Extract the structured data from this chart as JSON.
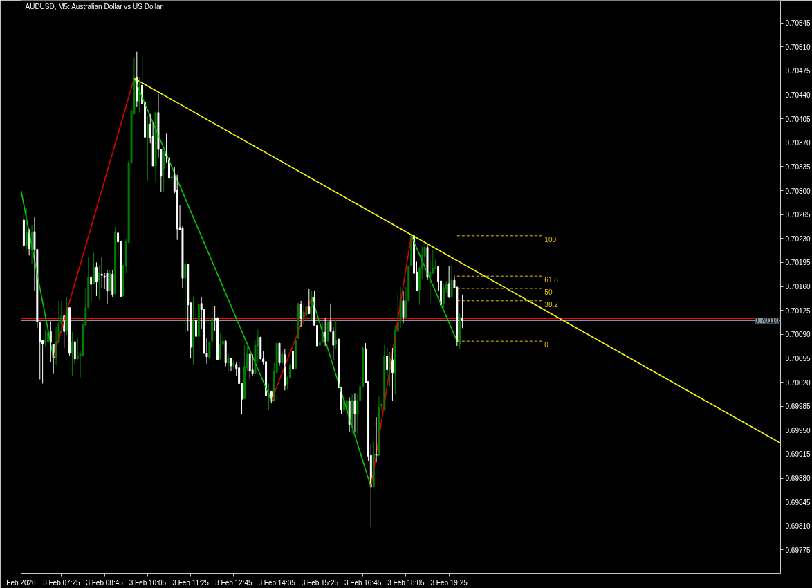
{
  "chart_data": {
    "type": "candlestick",
    "title": "AUDUSD, M5: Australian Dollar vs US Dollar",
    "x": [
      "2026-02-03T06:15",
      "2026-02-03T06:20",
      "2026-02-03T06:25",
      "2026-02-03T06:30",
      "2026-02-03T06:35",
      "2026-02-03T06:40",
      "2026-02-03T06:45",
      "2026-02-03T06:50",
      "2026-02-03T06:55",
      "2026-02-03T07:00",
      "2026-02-03T07:05",
      "2026-02-03T07:10",
      "2026-02-03T07:15",
      "2026-02-03T07:20",
      "2026-02-03T07:25",
      "2026-02-03T07:30",
      "2026-02-03T07:35",
      "2026-02-03T07:40",
      "2026-02-03T07:45",
      "2026-02-03T07:50",
      "2026-02-03T07:55",
      "2026-02-03T08:00",
      "2026-02-03T08:05",
      "2026-02-03T08:10",
      "2026-02-03T08:15",
      "2026-02-03T08:20",
      "2026-02-03T08:25",
      "2026-02-03T08:30",
      "2026-02-03T08:35",
      "2026-02-03T08:40",
      "2026-02-03T08:45",
      "2026-02-03T08:50",
      "2026-02-03T08:55",
      "2026-02-03T09:00",
      "2026-02-03T09:05",
      "2026-02-03T09:10",
      "2026-02-03T09:15",
      "2026-02-03T09:20",
      "2026-02-03T09:25",
      "2026-02-03T09:30",
      "2026-02-03T09:35",
      "2026-02-03T09:40",
      "2026-02-03T09:45",
      "2026-02-03T09:50",
      "2026-02-03T09:55",
      "2026-02-03T10:00",
      "2026-02-03T10:05",
      "2026-02-03T10:10",
      "2026-02-03T10:15",
      "2026-02-03T10:20",
      "2026-02-03T10:25",
      "2026-02-03T10:30",
      "2026-02-03T10:35",
      "2026-02-03T10:40",
      "2026-02-03T10:45",
      "2026-02-03T10:50",
      "2026-02-03T10:55",
      "2026-02-03T11:00",
      "2026-02-03T11:05",
      "2026-02-03T11:10",
      "2026-02-03T11:15",
      "2026-02-03T11:20",
      "2026-02-03T11:25",
      "2026-02-03T11:30",
      "2026-02-03T11:35",
      "2026-02-03T11:40",
      "2026-02-03T11:45",
      "2026-02-03T11:50",
      "2026-02-03T11:55",
      "2026-02-03T12:00",
      "2026-02-03T12:05",
      "2026-02-03T12:10",
      "2026-02-03T12:15",
      "2026-02-03T12:20",
      "2026-02-03T12:25",
      "2026-02-03T12:30",
      "2026-02-03T12:35",
      "2026-02-03T12:40",
      "2026-02-03T12:45",
      "2026-02-03T12:50",
      "2026-02-03T12:55",
      "2026-02-03T13:00",
      "2026-02-03T13:05",
      "2026-02-03T13:10",
      "2026-02-03T13:15",
      "2026-02-03T13:20",
      "2026-02-03T13:25",
      "2026-02-03T13:30",
      "2026-02-03T13:35",
      "2026-02-03T13:40",
      "2026-02-03T13:45",
      "2026-02-03T13:50",
      "2026-02-03T13:55",
      "2026-02-03T14:00",
      "2026-02-03T14:05",
      "2026-02-03T14:10",
      "2026-02-03T14:15",
      "2026-02-03T14:20",
      "2026-02-03T14:25",
      "2026-02-03T14:30",
      "2026-02-03T14:35",
      "2026-02-03T14:40",
      "2026-02-03T14:45",
      "2026-02-03T14:50",
      "2026-02-03T14:55",
      "2026-02-03T15:00",
      "2026-02-03T15:05",
      "2026-02-03T15:10",
      "2026-02-03T15:15",
      "2026-02-03T15:20",
      "2026-02-03T15:25",
      "2026-02-03T15:30",
      "2026-02-03T15:35",
      "2026-02-03T15:40",
      "2026-02-03T15:45",
      "2026-02-03T15:50",
      "2026-02-03T15:55",
      "2026-02-03T16:00",
      "2026-02-03T16:05",
      "2026-02-03T16:10",
      "2026-02-03T16:15",
      "2026-02-03T16:20",
      "2026-02-03T16:25",
      "2026-02-03T16:30",
      "2026-02-03T16:35",
      "2026-02-03T16:40",
      "2026-02-03T16:45",
      "2026-02-03T16:50",
      "2026-02-03T16:55",
      "2026-02-03T17:00",
      "2026-02-03T17:05",
      "2026-02-03T17:10",
      "2026-02-03T17:15",
      "2026-02-03T17:20",
      "2026-02-03T17:25",
      "2026-02-03T17:30",
      "2026-02-03T17:35",
      "2026-02-03T17:40",
      "2026-02-03T17:45",
      "2026-02-03T17:50",
      "2026-02-03T17:55",
      "2026-02-03T18:00",
      "2026-02-03T18:05",
      "2026-02-03T18:10",
      "2026-02-03T18:15",
      "2026-02-03T18:20",
      "2026-02-03T18:25",
      "2026-02-03T18:30",
      "2026-02-03T18:35",
      "2026-02-03T18:40",
      "2026-02-03T18:45",
      "2026-02-03T18:50",
      "2026-02-03T18:55",
      "2026-02-03T19:00",
      "2026-02-03T19:05",
      "2026-02-03T19:10",
      "2026-02-03T19:15",
      "2026-02-03T19:20",
      "2026-02-03T19:25",
      "2026-02-03T19:30",
      "2026-02-03T19:35",
      "2026-02-03T19:40",
      "2026-02-03T19:45",
      "2026-02-03T19:50"
    ],
    "ohlc": [
      [
        0.70257,
        0.70266,
        0.70214,
        0.7022
      ],
      [
        0.7022,
        0.70274,
        0.70214,
        0.70239
      ],
      [
        0.70242,
        0.70244,
        0.70205,
        0.70215
      ],
      [
        0.70214,
        0.7025,
        0.70193,
        0.70238
      ],
      [
        0.7024,
        0.70261,
        0.70154,
        0.70214
      ],
      [
        0.70214,
        0.70214,
        0.70099,
        0.70108
      ],
      [
        0.70108,
        0.70108,
        0.70024,
        0.70079
      ],
      [
        0.70081,
        0.70082,
        0.70018,
        0.70076
      ],
      [
        0.70078,
        0.70096,
        0.70073,
        0.70081
      ],
      [
        0.70079,
        0.70154,
        0.70049,
        0.70093
      ],
      [
        0.70094,
        0.70109,
        0.70049,
        0.70078
      ],
      [
        0.70075,
        0.70075,
        0.70033,
        0.70056
      ],
      [
        0.70056,
        0.70101,
        0.70046,
        0.70079
      ],
      [
        0.70078,
        0.70139,
        0.70078,
        0.70106
      ],
      [
        0.70106,
        0.70139,
        0.70091,
        0.70116
      ],
      [
        0.70117,
        0.70117,
        0.7007,
        0.70094
      ],
      [
        0.70095,
        0.70145,
        0.70089,
        0.70129
      ],
      [
        0.70129,
        0.70129,
        0.70058,
        0.70062
      ],
      [
        0.70063,
        0.70093,
        0.70029,
        0.70078
      ],
      [
        0.70079,
        0.7008,
        0.70047,
        0.70054
      ],
      [
        0.70054,
        0.70085,
        0.70054,
        0.70059
      ],
      [
        0.70059,
        0.70066,
        0.70027,
        0.70061
      ],
      [
        0.70059,
        0.70106,
        0.70058,
        0.70104
      ],
      [
        0.70103,
        0.70158,
        0.70103,
        0.70129
      ],
      [
        0.70129,
        0.70203,
        0.70129,
        0.70174
      ],
      [
        0.70173,
        0.70176,
        0.70138,
        0.70163
      ],
      [
        0.70164,
        0.70209,
        0.70163,
        0.70188
      ],
      [
        0.70188,
        0.70195,
        0.70146,
        0.70167
      ],
      [
        0.70169,
        0.70191,
        0.70141,
        0.70179
      ],
      [
        0.70178,
        0.70203,
        0.70158,
        0.70176
      ],
      [
        0.70175,
        0.7018,
        0.70156,
        0.70173
      ],
      [
        0.70179,
        0.70184,
        0.70134,
        0.70153
      ],
      [
        0.70154,
        0.70184,
        0.70154,
        0.70179
      ],
      [
        0.70178,
        0.70184,
        0.70144,
        0.70148
      ],
      [
        0.70149,
        0.70247,
        0.70149,
        0.70239
      ],
      [
        0.70238,
        0.7024,
        0.70195,
        0.70225
      ],
      [
        0.70226,
        0.70226,
        0.70145,
        0.70145
      ],
      [
        0.70146,
        0.70191,
        0.70146,
        0.70191
      ],
      [
        0.7019,
        0.7023,
        0.70179,
        0.70225
      ],
      [
        0.70224,
        0.70344,
        0.70224,
        0.70341
      ],
      [
        0.70341,
        0.7042,
        0.70339,
        0.70416
      ],
      [
        0.70412,
        0.70494,
        0.70412,
        0.70464
      ],
      [
        0.70465,
        0.70503,
        0.70422,
        0.70431
      ],
      [
        0.70429,
        0.70466,
        0.70414,
        0.70451
      ],
      [
        0.70454,
        0.70498,
        0.70426,
        0.70427
      ],
      [
        0.70429,
        0.70434,
        0.70345,
        0.70378
      ],
      [
        0.70378,
        0.70409,
        0.70315,
        0.70397
      ],
      [
        0.70397,
        0.70412,
        0.70369,
        0.70377
      ],
      [
        0.70379,
        0.70399,
        0.70336,
        0.70336
      ],
      [
        0.70336,
        0.70416,
        0.70313,
        0.70414
      ],
      [
        0.70414,
        0.70441,
        0.70348,
        0.7036
      ],
      [
        0.7036,
        0.7036,
        0.70298,
        0.70321
      ],
      [
        0.70331,
        0.70358,
        0.70298,
        0.70357
      ],
      [
        0.70355,
        0.70384,
        0.70341,
        0.70351
      ],
      [
        0.70348,
        0.70358,
        0.70307,
        0.70318
      ],
      [
        0.70318,
        0.70323,
        0.70291,
        0.7032
      ],
      [
        0.70323,
        0.70334,
        0.70296,
        0.70299
      ],
      [
        0.703,
        0.70323,
        0.70228,
        0.70244
      ],
      [
        0.70246,
        0.70279,
        0.70243,
        0.70243
      ],
      [
        0.70245,
        0.70248,
        0.70158,
        0.70172
      ],
      [
        0.70172,
        0.70197,
        0.70093,
        0.70193
      ],
      [
        0.70192,
        0.70192,
        0.70095,
        0.70133
      ],
      [
        0.70136,
        0.70136,
        0.70055,
        0.70071
      ],
      [
        0.70071,
        0.70145,
        0.70046,
        0.70109
      ],
      [
        0.7011,
        0.70127,
        0.70087,
        0.70087
      ],
      [
        0.70087,
        0.70139,
        0.7008,
        0.70134
      ],
      [
        0.70135,
        0.70145,
        0.70098,
        0.70126
      ],
      [
        0.70126,
        0.70126,
        0.70062,
        0.70062
      ],
      [
        0.70062,
        0.70085,
        0.70047,
        0.70057
      ],
      [
        0.70055,
        0.70079,
        0.70055,
        0.70079
      ],
      [
        0.7008,
        0.70137,
        0.70068,
        0.70114
      ],
      [
        0.70114,
        0.70131,
        0.70095,
        0.70112
      ],
      [
        0.70114,
        0.70115,
        0.70053,
        0.70053
      ],
      [
        0.70054,
        0.70091,
        0.70053,
        0.70075
      ],
      [
        0.70075,
        0.701,
        0.70075,
        0.7008
      ],
      [
        0.7008,
        0.70082,
        0.70043,
        0.70048
      ],
      [
        0.70048,
        0.70063,
        0.70036,
        0.70055
      ],
      [
        0.70055,
        0.70055,
        0.70036,
        0.70044
      ],
      [
        0.70044,
        0.70053,
        0.70038,
        0.70048
      ],
      [
        0.70046,
        0.7005,
        0.70029,
        0.7004
      ],
      [
        0.70041,
        0.70049,
        0.70017,
        0.70018
      ],
      [
        0.70018,
        0.70018,
        0.69974,
        0.69995
      ],
      [
        0.69996,
        0.70074,
        0.69996,
        0.70043
      ],
      [
        0.70041,
        0.70073,
        0.70036,
        0.70061
      ],
      [
        0.70061,
        0.70061,
        0.70025,
        0.70036
      ],
      [
        0.70038,
        0.70061,
        0.70029,
        0.70033
      ],
      [
        0.70033,
        0.70082,
        0.70033,
        0.70074
      ],
      [
        0.70073,
        0.70097,
        0.70049,
        0.70085
      ],
      [
        0.70086,
        0.70086,
        0.70054,
        0.70054
      ],
      [
        0.70054,
        0.70066,
        0.70046,
        0.70049
      ],
      [
        0.7005,
        0.7005,
        0.7,
        0.7
      ],
      [
        0.7,
        0.70018,
        0.6998,
        0.70004
      ],
      [
        0.70007,
        0.70007,
        0.69989,
        0.69993
      ],
      [
        0.69992,
        0.70048,
        0.69992,
        0.70036
      ],
      [
        0.70034,
        0.70077,
        0.70034,
        0.70077
      ],
      [
        0.70077,
        0.70077,
        0.70044,
        0.70048
      ],
      [
        0.70048,
        0.70066,
        0.70048,
        0.70061
      ],
      [
        0.7006,
        0.70069,
        0.70008,
        0.70015
      ],
      [
        0.70017,
        0.70029,
        0.70009,
        0.70027
      ],
      [
        0.70026,
        0.70056,
        0.70026,
        0.70046
      ],
      [
        0.70065,
        0.70068,
        0.70039,
        0.70039
      ],
      [
        0.70039,
        0.70082,
        0.70039,
        0.70082
      ],
      [
        0.70084,
        0.70135,
        0.70084,
        0.70135
      ],
      [
        0.70134,
        0.70139,
        0.70101,
        0.70113
      ],
      [
        0.70113,
        0.70133,
        0.70104,
        0.70123
      ],
      [
        0.70119,
        0.70131,
        0.70109,
        0.7013
      ],
      [
        0.7013,
        0.70156,
        0.7012,
        0.7012
      ],
      [
        0.7013,
        0.70154,
        0.7011,
        0.70144
      ],
      [
        0.70144,
        0.70154,
        0.70103,
        0.70103
      ],
      [
        0.70103,
        0.70103,
        0.70058,
        0.70073
      ],
      [
        0.70074,
        0.70093,
        0.70074,
        0.70078
      ],
      [
        0.70078,
        0.70107,
        0.70078,
        0.70093
      ],
      [
        0.70093,
        0.70114,
        0.70073,
        0.7008
      ],
      [
        0.7008,
        0.70112,
        0.7008,
        0.70108
      ],
      [
        0.70109,
        0.70135,
        0.70094,
        0.70094
      ],
      [
        0.70094,
        0.70101,
        0.70053,
        0.70074
      ],
      [
        0.70076,
        0.70112,
        0.70069,
        0.70081
      ],
      [
        0.70083,
        0.70083,
        0.70012,
        0.70012
      ],
      [
        0.70013,
        0.70013,
        0.69973,
        0.6998
      ],
      [
        0.69979,
        0.69999,
        0.6997,
        0.69994
      ],
      [
        0.69979,
        0.69998,
        0.69966,
        0.69993
      ],
      [
        0.69993,
        0.69998,
        0.69947,
        0.69958
      ],
      [
        0.69955,
        0.70003,
        0.69945,
        0.69994
      ],
      [
        0.69993,
        0.70004,
        0.69948,
        0.69974
      ],
      [
        0.69973,
        0.70003,
        0.69945,
        0.69993
      ],
      [
        0.69993,
        0.70028,
        0.69993,
        0.70014
      ],
      [
        0.70013,
        0.70071,
        0.70013,
        0.7007
      ],
      [
        0.70069,
        0.70077,
        0.70019,
        0.70019
      ],
      [
        0.70021,
        0.70021,
        0.69905,
        0.69912
      ],
      [
        0.69913,
        0.69929,
        0.69808,
        0.69867
      ],
      [
        0.69867,
        0.69933,
        0.69867,
        0.69914
      ],
      [
        0.69915,
        0.69969,
        0.69903,
        0.69913
      ],
      [
        0.69913,
        0.69999,
        0.69913,
        0.69984
      ],
      [
        0.69985,
        0.69989,
        0.69979,
        0.69988
      ],
      [
        0.69979,
        0.70074,
        0.69979,
        0.70059
      ],
      [
        0.70058,
        0.70071,
        0.70028,
        0.70038
      ],
      [
        0.70038,
        0.70064,
        0.70014,
        0.70055
      ],
      [
        0.70053,
        0.7007,
        0.69993,
        0.70034
      ],
      [
        0.70033,
        0.70103,
        0.70003,
        0.70096
      ],
      [
        0.70094,
        0.70151,
        0.70094,
        0.70107
      ],
      [
        0.70109,
        0.70159,
        0.70099,
        0.7014
      ],
      [
        0.70139,
        0.70154,
        0.70106,
        0.70115
      ],
      [
        0.70115,
        0.70159,
        0.70115,
        0.70139
      ],
      [
        0.70139,
        0.7019,
        0.70139,
        0.7019
      ],
      [
        0.7019,
        0.70234,
        0.7019,
        0.70234
      ],
      [
        0.70234,
        0.70244,
        0.70169,
        0.70179
      ],
      [
        0.70181,
        0.70196,
        0.70153,
        0.70154
      ],
      [
        0.70155,
        0.70189,
        0.70133,
        0.70186
      ],
      [
        0.70186,
        0.70218,
        0.7017,
        0.70205
      ],
      [
        0.70204,
        0.70224,
        0.70193,
        0.70217
      ],
      [
        0.70217,
        0.70221,
        0.70169,
        0.70173
      ],
      [
        0.70173,
        0.70199,
        0.70134,
        0.70181
      ],
      [
        0.70179,
        0.70214,
        0.70179,
        0.70187
      ],
      [
        0.70186,
        0.70199,
        0.70186,
        0.70188
      ],
      [
        0.70189,
        0.70189,
        0.70154,
        0.70167
      ],
      [
        0.70168,
        0.70174,
        0.70084,
        0.70133
      ],
      [
        0.70134,
        0.70163,
        0.70128,
        0.70158
      ],
      [
        0.70156,
        0.70168,
        0.7015,
        0.70163
      ],
      [
        0.70164,
        0.7019,
        0.70143,
        0.70145
      ],
      [
        0.70144,
        0.70192,
        0.70144,
        0.70169
      ],
      [
        0.70169,
        0.70176,
        0.70158,
        0.70158
      ],
      [
        0.70159,
        0.70159,
        0.70073,
        0.7008
      ],
      [
        0.70076,
        0.70121,
        0.70068,
        0.70115
      ],
      [
        0.70114,
        0.70148,
        0.70099,
        0.7011
      ]
    ],
    "colors": [
      "#ffffff",
      "#008000",
      "#ffffff",
      "#008000",
      "#ffffff",
      "#ffffff",
      "#ffffff",
      "#ffffff",
      "#008000",
      "#008000",
      "#ffffff",
      "#ffffff",
      "#008000",
      "#008000",
      "#008000",
      "#ffffff",
      "#008000",
      "#ffffff",
      "#008000",
      "#ffffff",
      "#008000",
      "#008000",
      "#008000",
      "#008000",
      "#008000",
      "#ffffff",
      "#008000",
      "#ffffff",
      "#008000",
      "#ffffff",
      "#ffffff",
      "#ffffff",
      "#008000",
      "#ffffff",
      "#008000",
      "#ffffff",
      "#ffffff",
      "#008000",
      "#008000",
      "#008000",
      "#008000",
      "#008000",
      "#ffffff",
      "#008000",
      "#ffffff",
      "#ffffff",
      "#008000",
      "#ffffff",
      "#ffffff",
      "#008000",
      "#ffffff",
      "#ffffff",
      "#008000",
      "#ffffff",
      "#ffffff",
      "#008000",
      "#ffffff",
      "#ffffff",
      "#ffffff",
      "#ffffff",
      "#008000",
      "#ffffff",
      "#ffffff",
      "#008000",
      "#ffffff",
      "#008000",
      "#ffffff",
      "#ffffff",
      "#ffffff",
      "#008000",
      "#008000",
      "#ffffff",
      "#ffffff",
      "#008000",
      "#008000",
      "#ffffff",
      "#008000",
      "#ffffff",
      "#008000",
      "#ffffff",
      "#ffffff",
      "#ffffff",
      "#008000",
      "#008000",
      "#ffffff",
      "#ffffff",
      "#008000",
      "#008000",
      "#ffffff",
      "#ffffff",
      "#ffffff",
      "#008000",
      "#ffffff",
      "#008000",
      "#008000",
      "#ffffff",
      "#008000",
      "#ffffff",
      "#008000",
      "#008000",
      "#ffffff",
      "#008000",
      "#008000",
      "#ffffff",
      "#008000",
      "#008000",
      "#ffffff",
      "#008000",
      "#ffffff",
      "#ffffff",
      "#008000",
      "#008000",
      "#ffffff",
      "#008000",
      "#ffffff",
      "#ffffff",
      "#008000",
      "#ffffff",
      "#ffffff",
      "#008000",
      "#008000",
      "#ffffff",
      "#008000",
      "#ffffff",
      "#008000",
      "#008000",
      "#008000",
      "#ffffff",
      "#ffffff",
      "#ffffff",
      "#008000",
      "#ffffff",
      "#008000",
      "#008000",
      "#008000",
      "#ffffff",
      "#008000",
      "#ffffff",
      "#008000",
      "#008000",
      "#008000",
      "#ffffff",
      "#008000",
      "#008000",
      "#008000",
      "#ffffff",
      "#ffffff",
      "#008000",
      "#008000",
      "#008000",
      "#ffffff",
      "#008000",
      "#008000",
      "#008000",
      "#ffffff",
      "#ffffff",
      "#008000",
      "#008000",
      "#ffffff",
      "#008000",
      "#ffffff",
      "#ffffff",
      "#008000",
      "#ffffff"
    ],
    "series": [
      {
        "type": "line",
        "color": "#00cc00",
        "x": [
          "2026-02-03T06:10",
          "2026-02-03T07:10"
        ],
        "values": [
          0.703,
          0.70056
        ]
      },
      {
        "type": "line",
        "color": "#dd0000",
        "x": [
          "2026-02-03T07:10",
          "2026-02-03T09:40"
        ],
        "values": [
          0.70056,
          0.70464
        ]
      },
      {
        "type": "line",
        "color": "#00cc00",
        "x": [
          "2026-02-03T09:40",
          "2026-02-03T13:55"
        ],
        "values": [
          0.70464,
          0.69993
        ]
      },
      {
        "type": "line",
        "color": "#dd0000",
        "x": [
          "2026-02-03T13:55",
          "2026-02-03T15:10"
        ],
        "values": [
          0.69993,
          0.70144
        ]
      },
      {
        "type": "line",
        "color": "#00cc00",
        "x": [
          "2026-02-03T15:10",
          "2026-02-03T17:00"
        ],
        "values": [
          0.70144,
          0.69867
        ]
      },
      {
        "type": "line",
        "color": "#dd0000",
        "x": [
          "2026-02-03T17:00",
          "2026-02-03T18:15"
        ],
        "values": [
          0.69867,
          0.70234
        ]
      },
      {
        "type": "line",
        "color": "#00cc00",
        "x": [
          "2026-02-03T18:15",
          "2026-02-03T19:40"
        ],
        "values": [
          0.70234,
          0.7008
        ]
      },
      {
        "type": "line",
        "color": "#ffff00",
        "x": [
          "2026-02-03T09:40",
          "2026-02-04T05:41"
        ],
        "values": [
          0.70464,
          0.69931
        ]
      },
      {
        "type": "line",
        "name": "100",
        "color": "#e6c800",
        "line_style": "dashed",
        "x": [
          "2026-02-03T19:40",
          "2026-02-03T22:20"
        ],
        "values": [
          0.70234,
          0.70234
        ]
      },
      {
        "type": "line",
        "name": "61.8",
        "color": "#e6c800",
        "line_style": "dashed",
        "x": [
          "2026-02-03T19:40",
          "2026-02-03T22:20"
        ],
        "values": [
          0.70175,
          0.70175
        ]
      },
      {
        "type": "line",
        "name": "50",
        "color": "#e6c800",
        "line_style": "dashed",
        "x": [
          "2026-02-03T19:40",
          "2026-02-03T22:20"
        ],
        "values": [
          0.70157,
          0.70157
        ]
      },
      {
        "type": "line",
        "name": "38.2",
        "color": "#e6c800",
        "line_style": "dashed",
        "x": [
          "2026-02-03T19:40",
          "2026-02-03T22:20"
        ],
        "values": [
          0.70139,
          0.70139
        ]
      },
      {
        "type": "line",
        "name": "0",
        "color": "#e6c800",
        "line_style": "dashed",
        "x": [
          "2026-02-03T19:40",
          "2026-02-03T22:20"
        ],
        "values": [
          0.7008,
          0.7008
        ]
      }
    ],
    "ref_lines": [
      {
        "axis": "y",
        "value": 0.70113,
        "color": "#ff0000"
      },
      {
        "axis": "y",
        "value": 0.7011,
        "label": "0.70110",
        "color": "#8899aa"
      }
    ],
    "xlim": [
      "2026-02-03T06:10",
      "2026-02-04T05:41"
    ],
    "ylim": [
      0.6974,
      0.70578
    ],
    "xticks": [
      {
        "value": "2026-02-03T06:10",
        "label": "Feb 2026"
      },
      {
        "value": "2026-02-03T07:25",
        "label": "3 Feb 07:25"
      },
      {
        "value": "2026-02-03T08:45",
        "label": "3 Feb 08:45"
      },
      {
        "value": "2026-02-03T10:05",
        "label": "3 Feb 10:05"
      },
      {
        "value": "2026-02-03T11:25",
        "label": "3 Feb 11:25"
      },
      {
        "value": "2026-02-03T12:45",
        "label": "3 Feb 12:45"
      },
      {
        "value": "2026-02-03T14:05",
        "label": "3 Feb 14:05"
      },
      {
        "value": "2026-02-03T15:25",
        "label": "3 Feb 15:25"
      },
      {
        "value": "2026-02-03T16:45",
        "label": "3 Feb 16:45"
      },
      {
        "value": "2026-02-03T18:05",
        "label": "3 Feb 18:05"
      },
      {
        "value": "2026-02-03T19:25",
        "label": "3 Feb 19:25"
      }
    ],
    "yticks": [
      0.69775,
      {
        "value": 0.6981,
        "label": "0.69810"
      },
      0.69845,
      {
        "value": 0.6988,
        "label": "0.69880"
      },
      0.69915,
      {
        "value": 0.6995,
        "label": "0.69950"
      },
      0.69985,
      {
        "value": 0.7002,
        "label": "0.70020"
      },
      0.70055,
      {
        "value": 0.7009,
        "label": "0.70090"
      },
      0.70125,
      {
        "value": 0.7016,
        "label": "0.70160"
      },
      0.70195,
      {
        "value": 0.7023,
        "label": "0.70230"
      },
      0.70265,
      {
        "value": 0.703,
        "label": "0.70300"
      },
      0.70335,
      {
        "value": 0.7037,
        "label": "0.70370"
      },
      0.70405,
      {
        "value": 0.7044,
        "label": "0.70440"
      },
      0.70475,
      {
        "value": 0.7051,
        "label": "0.70510"
      },
      0.70545
    ]
  }
}
